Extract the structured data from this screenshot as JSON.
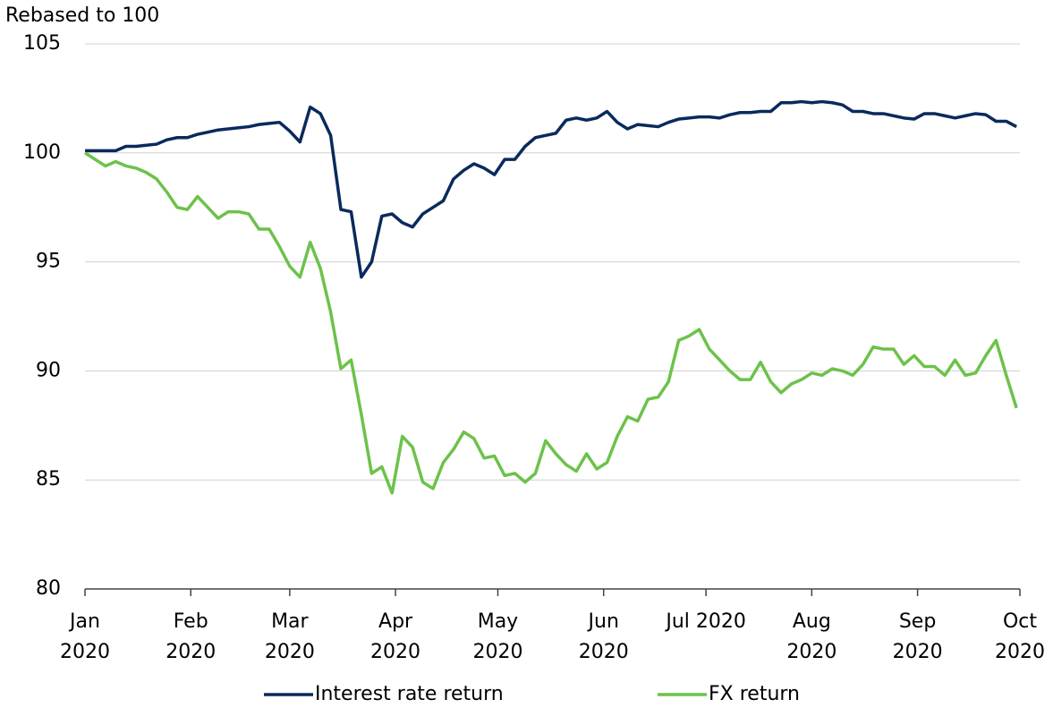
{
  "chart_data": {
    "type": "line",
    "y_label": "Rebased to 100",
    "x": [
      0,
      3,
      6,
      9,
      12,
      15,
      18,
      21,
      24,
      27,
      30,
      33,
      36,
      39,
      42,
      45,
      48,
      51,
      54,
      57,
      60,
      63,
      66,
      69,
      72,
      75,
      78,
      81,
      84,
      87,
      90,
      93,
      96,
      99,
      102,
      105,
      108,
      111,
      114,
      117,
      120,
      123,
      126,
      129,
      132,
      135,
      138,
      141,
      144,
      147,
      150,
      153,
      156,
      159,
      162,
      165,
      168,
      171,
      174,
      177,
      180,
      183,
      186,
      189,
      192,
      195,
      198,
      201,
      204,
      207,
      210,
      213,
      216,
      219,
      222,
      225,
      228,
      231,
      234,
      237,
      240,
      243,
      246,
      249,
      252,
      255,
      258,
      261,
      264,
      267,
      270,
      273
    ],
    "series": [
      {
        "name": "Interest rate return",
        "color": "#0a2a5c",
        "values": [
          100.1,
          100.1,
          100.1,
          100.1,
          100.3,
          100.3,
          100.35,
          100.4,
          100.6,
          100.7,
          100.7,
          100.85,
          100.95,
          101.05,
          101.1,
          101.15,
          101.2,
          101.3,
          101.35,
          101.4,
          101.0,
          100.5,
          102.1,
          101.8,
          100.8,
          97.4,
          97.3,
          94.3,
          95.0,
          97.1,
          97.2,
          96.8,
          96.6,
          97.2,
          97.5,
          97.8,
          98.8,
          99.2,
          99.5,
          99.3,
          99.0,
          99.7,
          99.7,
          100.3,
          100.7,
          100.8,
          100.9,
          101.5,
          101.6,
          101.5,
          101.6,
          101.9,
          101.4,
          101.1,
          101.3,
          101.25,
          101.2,
          101.4,
          101.55,
          101.6,
          101.65,
          101.65,
          101.6,
          101.75,
          101.85,
          101.85,
          101.9,
          101.9,
          102.3,
          102.3,
          102.35,
          102.3,
          102.35,
          102.3,
          102.2,
          101.9,
          101.9,
          101.8,
          101.8,
          101.7,
          101.6,
          101.55,
          101.8,
          101.8,
          101.7,
          101.6,
          101.7,
          101.8,
          101.75,
          101.45,
          101.45,
          101.2
        ]
      },
      {
        "name": "FX return",
        "color": "#6cc24a",
        "values": [
          100.0,
          99.7,
          99.4,
          99.6,
          99.4,
          99.3,
          99.1,
          98.8,
          98.2,
          97.5,
          97.4,
          98.0,
          97.5,
          97.0,
          97.3,
          97.3,
          97.2,
          96.5,
          96.5,
          95.7,
          94.8,
          94.3,
          95.9,
          94.7,
          92.7,
          90.1,
          90.5,
          88.0,
          85.3,
          85.6,
          84.4,
          87.0,
          86.5,
          84.9,
          84.6,
          85.8,
          86.4,
          87.2,
          86.9,
          86.0,
          86.1,
          85.2,
          85.3,
          84.9,
          85.3,
          86.8,
          86.2,
          85.7,
          85.4,
          86.2,
          85.5,
          85.8,
          87.0,
          87.9,
          87.7,
          88.7,
          88.8,
          89.5,
          91.4,
          91.6,
          91.9,
          91.0,
          90.5,
          90.0,
          89.6,
          89.6,
          90.4,
          89.5,
          89.0,
          89.4,
          89.6,
          89.9,
          89.8,
          90.1,
          90.0,
          89.8,
          90.3,
          91.1,
          91.0,
          91.0,
          90.3,
          90.7,
          90.2,
          90.2,
          89.8,
          90.5,
          89.8,
          89.9,
          90.7,
          91.4,
          89.8,
          88.3
        ]
      }
    ],
    "xlim": [
      0,
      274
    ],
    "xticks": [
      {
        "value": 0,
        "label": "Jan\n2020"
      },
      {
        "value": 31,
        "label": "Feb\n2020"
      },
      {
        "value": 60,
        "label": "Mar\n2020"
      },
      {
        "value": 91,
        "label": "Apr\n2020"
      },
      {
        "value": 121,
        "label": "May\n2020"
      },
      {
        "value": 152,
        "label": "Jun\n2020"
      },
      {
        "value": 182,
        "label": "Jul 2020"
      },
      {
        "value": 213,
        "label": "Aug\n2020"
      },
      {
        "value": 244,
        "label": "Sep\n2020"
      },
      {
        "value": 274,
        "label": "Oct\n2020"
      }
    ],
    "ylim": [
      80,
      105
    ],
    "yticks": [
      80,
      85,
      90,
      95,
      100,
      105
    ],
    "grid": true,
    "legend": "bottom"
  }
}
